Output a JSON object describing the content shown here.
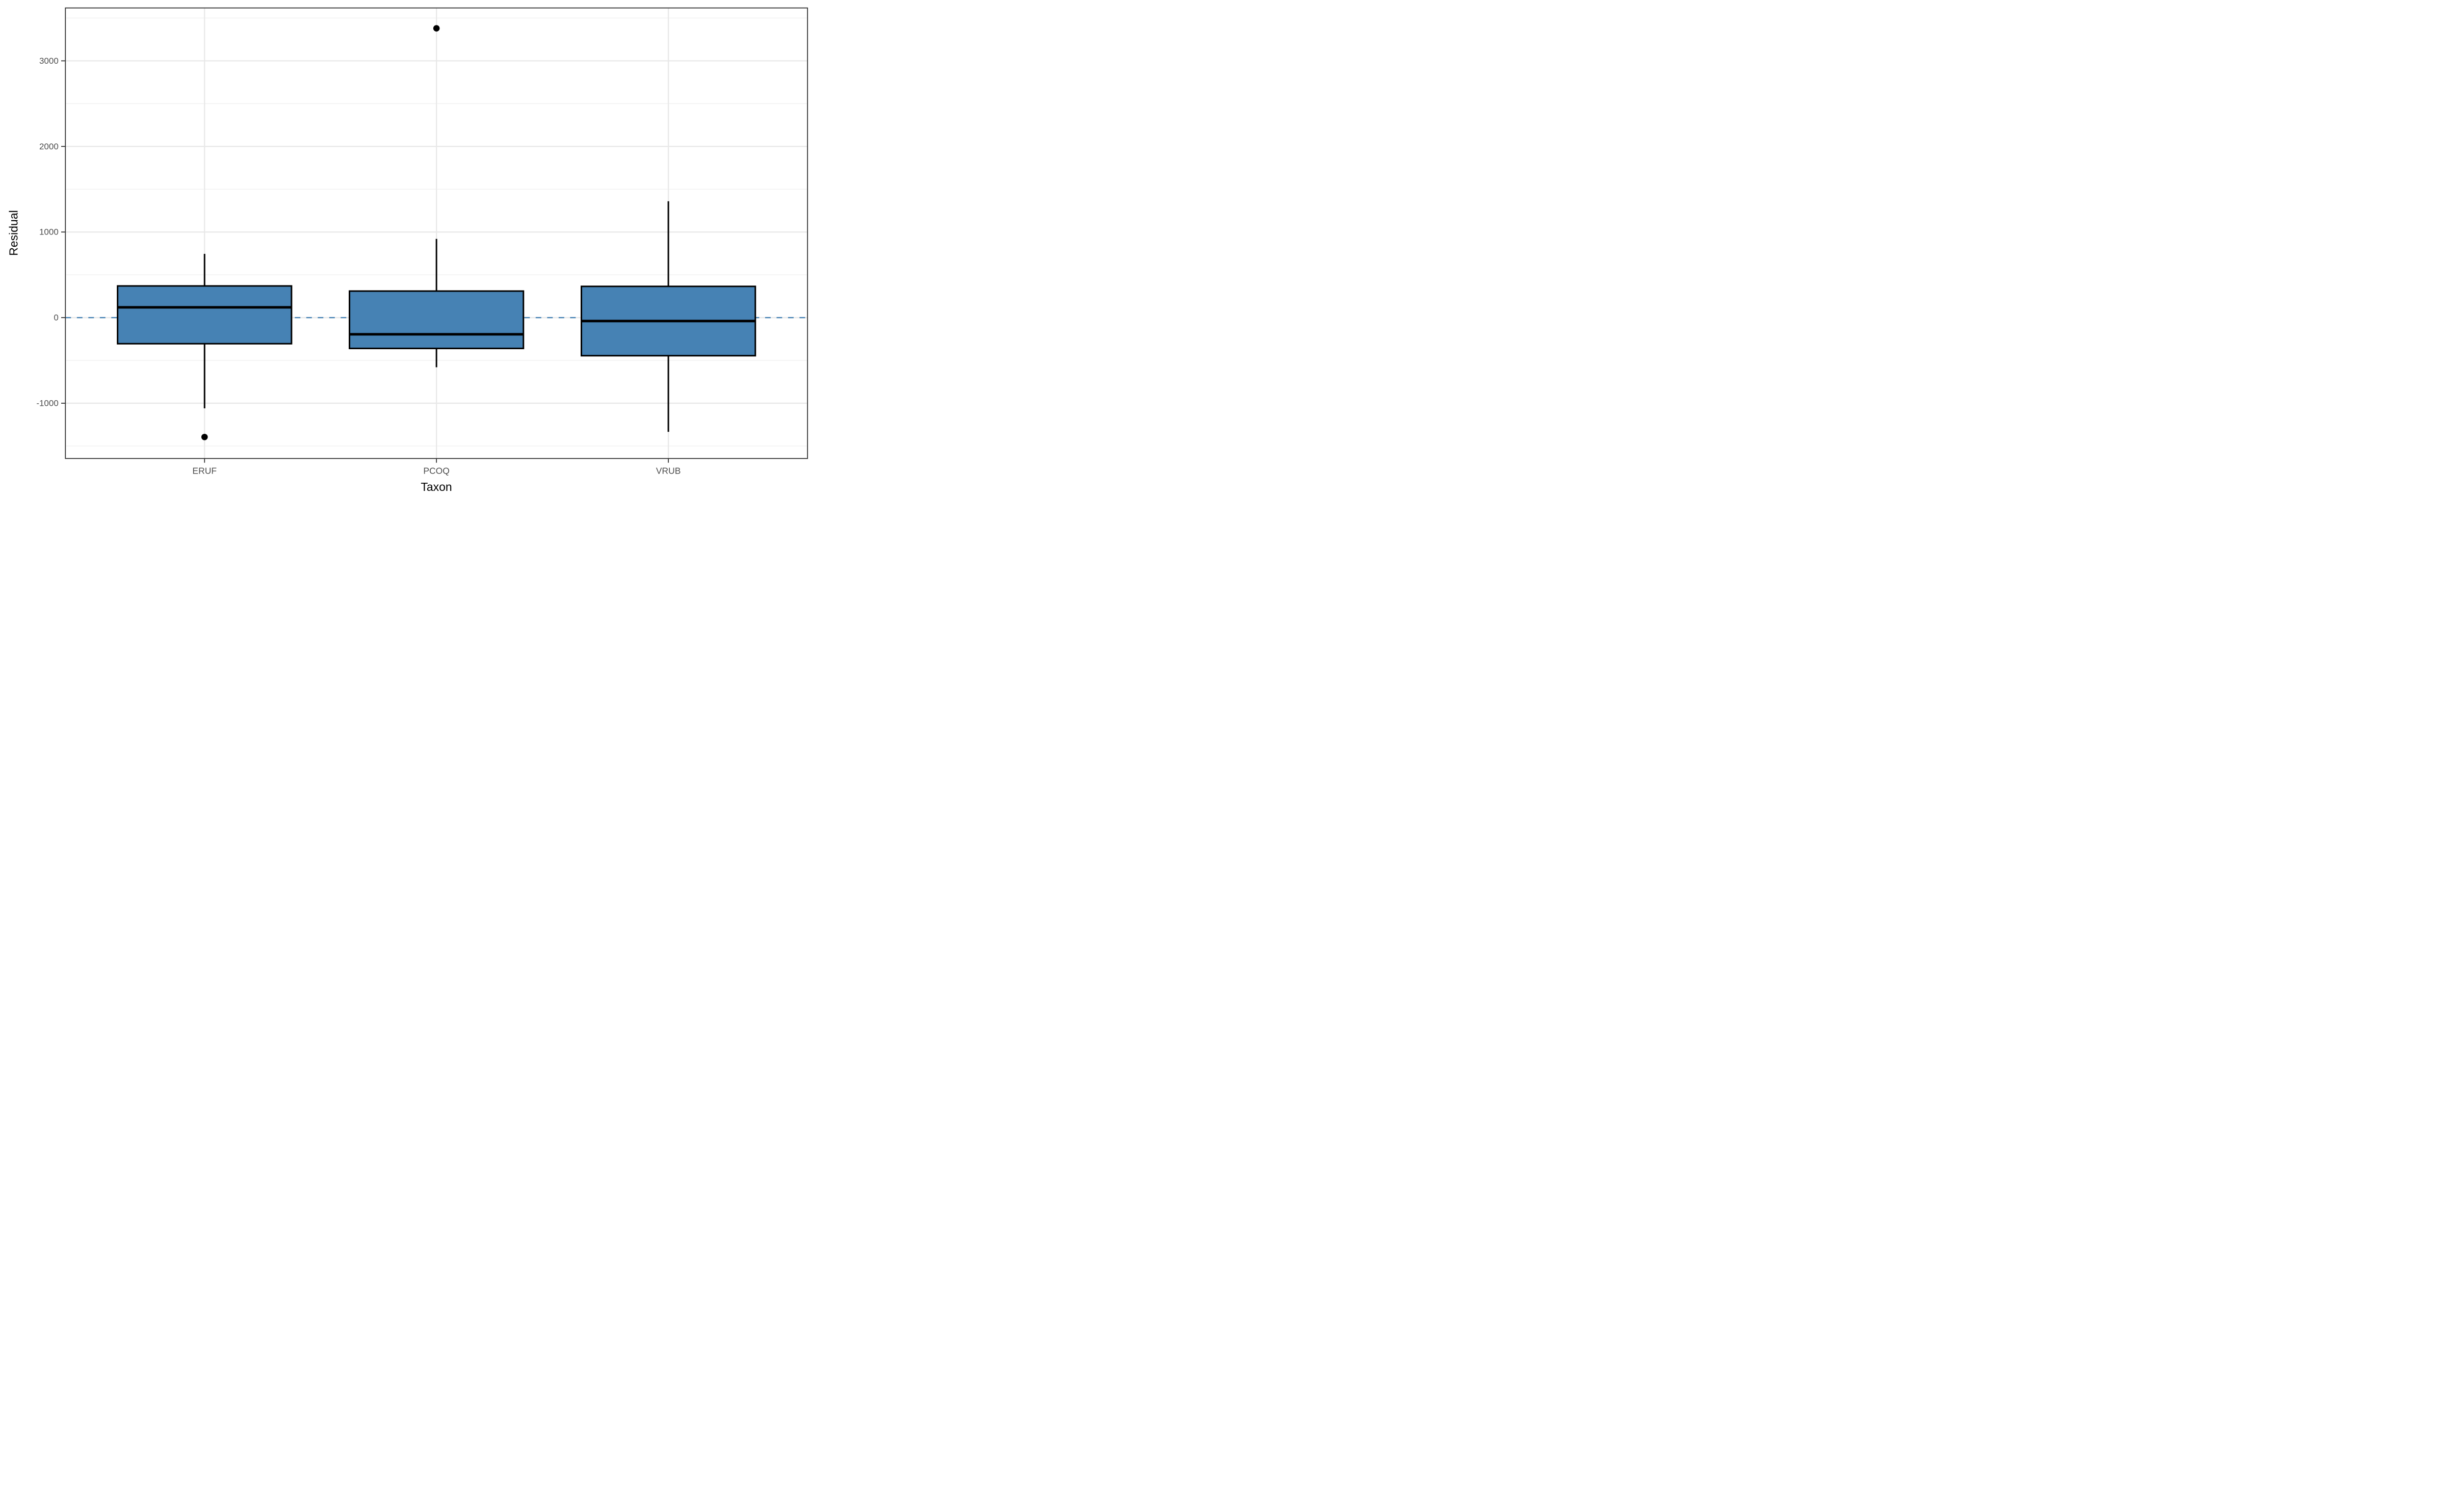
{
  "figure": {
    "background": "#FFFFFF"
  },
  "axes": {
    "x_title": "Taxon",
    "y_title": "Residual",
    "x_tick_labels": [
      "ERUF",
      "PCOQ",
      "VRUB"
    ],
    "y_tick_labels": [
      "-1000",
      "0",
      "1000",
      "2000",
      "3000"
    ]
  },
  "chart_data": {
    "type": "boxplot",
    "title": "",
    "xlabel": "Taxon",
    "ylabel": "Residual",
    "categories": [
      "ERUF",
      "PCOQ",
      "VRUB"
    ],
    "series": [
      {
        "name": "ERUF",
        "whisker_low": -1060,
        "q1": -305,
        "median": 120,
        "q3": 370,
        "whisker_high": 745,
        "outliers": [
          -1395
        ]
      },
      {
        "name": "PCOQ",
        "whisker_low": -580,
        "q1": -360,
        "median": -195,
        "q3": 310,
        "whisker_high": 920,
        "outliers": [
          3380
        ]
      },
      {
        "name": "VRUB",
        "whisker_low": -1335,
        "q1": -445,
        "median": -40,
        "q3": 365,
        "whisker_high": 1360,
        "outliers": []
      }
    ],
    "y_major_ticks": [
      -1000,
      0,
      1000,
      2000,
      3000
    ],
    "y_minor_ticks": [
      -1500,
      -500,
      500,
      1500,
      2500,
      3500
    ],
    "ylim": [
      -1646,
      3618
    ],
    "reference_line": {
      "y": 0,
      "style": "dashed"
    },
    "grid": true,
    "legend": false,
    "box_width_fraction": 0.75
  },
  "colors": {
    "box_fill": "#4682B4",
    "box_stroke": "#000000",
    "reference_line": "#4682B4",
    "grid_major": "#E8E8E8",
    "grid_minor": "#F2F2F2",
    "panel_border": "#333333",
    "tick": "#333333",
    "tick_label": "#4D4D4D",
    "axis_title": "#000000",
    "outlier": "#000000",
    "background": "#FFFFFF"
  }
}
